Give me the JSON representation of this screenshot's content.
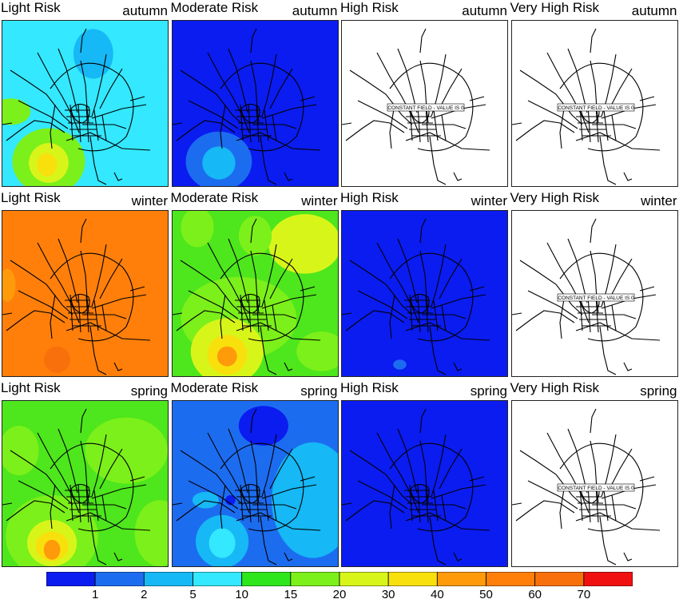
{
  "panels": [
    {
      "risk": "Light Risk",
      "season": "autumn",
      "fill": "gradient",
      "base": "#33e8ff",
      "constant_label": ""
    },
    {
      "risk": "Moderate Risk",
      "season": "autumn",
      "fill": "gradient",
      "base": "#0a1cf0",
      "constant_label": ""
    },
    {
      "risk": "High Risk",
      "season": "autumn",
      "fill": "constant",
      "base": "#ffffff",
      "constant_label": "CONSTANT FIELD - VALUE IS 0"
    },
    {
      "risk": "Very High Risk",
      "season": "autumn",
      "fill": "constant",
      "base": "#ffffff",
      "constant_label": "CONSTANT FIELD - VALUE IS 0"
    },
    {
      "risk": "Light Risk",
      "season": "winter",
      "fill": "gradient",
      "base": "#ff7f0a",
      "constant_label": ""
    },
    {
      "risk": "Moderate Risk",
      "season": "winter",
      "fill": "gradient",
      "base": "#4ee61c",
      "constant_label": ""
    },
    {
      "risk": "High Risk",
      "season": "winter",
      "fill": "gradient",
      "base": "#0a1cf0",
      "constant_label": ""
    },
    {
      "risk": "Very High Risk",
      "season": "winter",
      "fill": "constant",
      "base": "#ffffff",
      "constant_label": "CONSTANT FIELD - VALUE IS 0"
    },
    {
      "risk": "Light Risk",
      "season": "spring",
      "fill": "gradient",
      "base": "#4ee61c",
      "constant_label": ""
    },
    {
      "risk": "Moderate Risk",
      "season": "spring",
      "fill": "gradient",
      "base": "#1c6cf0",
      "constant_label": ""
    },
    {
      "risk": "High Risk",
      "season": "spring",
      "fill": "gradient",
      "base": "#0a1cf0",
      "constant_label": ""
    },
    {
      "risk": "Very High Risk",
      "season": "spring",
      "fill": "constant",
      "base": "#ffffff",
      "constant_label": "CONSTANT FIELD - VALUE IS 0"
    }
  ],
  "legend": {
    "colors": [
      "#0a1cf0",
      "#1c6cf0",
      "#16b8f5",
      "#33e8ff",
      "#2ee61c",
      "#7cf01a",
      "#d8f51a",
      "#f8e00c",
      "#ff9a0a",
      "#ff7f0a",
      "#f8700c",
      "#f01010"
    ],
    "ticks": [
      "1",
      "2",
      "5",
      "10",
      "15",
      "20",
      "30",
      "40",
      "50",
      "60",
      "70"
    ]
  }
}
